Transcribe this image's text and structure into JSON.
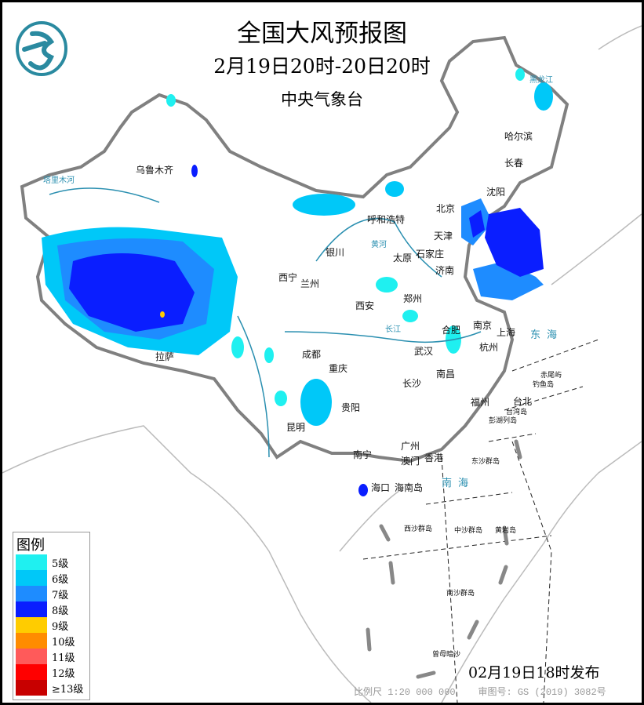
{
  "header": {
    "title": "全国大风预报图",
    "period": "2月19日20时-20日20时",
    "agency": "中央气象台",
    "logo": "cma-dragon-logo"
  },
  "colors": {
    "border": "#808080",
    "water": "#2a8fb0",
    "logo": "#2a8aa0"
  },
  "cities": [
    {
      "name": "乌鲁木齐"
    },
    {
      "name": "哈尔滨"
    },
    {
      "name": "长春"
    },
    {
      "name": "沈阳"
    },
    {
      "name": "北京"
    },
    {
      "name": "天津"
    },
    {
      "name": "呼和浩特"
    },
    {
      "name": "银川"
    },
    {
      "name": "太原"
    },
    {
      "name": "石家庄"
    },
    {
      "name": "济南"
    },
    {
      "name": "西宁"
    },
    {
      "name": "兰州"
    },
    {
      "name": "西安"
    },
    {
      "name": "郑州"
    },
    {
      "name": "合肥"
    },
    {
      "name": "南京"
    },
    {
      "name": "上海"
    },
    {
      "name": "杭州"
    },
    {
      "name": "武汉"
    },
    {
      "name": "成都"
    },
    {
      "name": "重庆"
    },
    {
      "name": "拉萨"
    },
    {
      "name": "长沙"
    },
    {
      "name": "南昌"
    },
    {
      "name": "福州"
    },
    {
      "name": "台北"
    },
    {
      "name": "贵阳"
    },
    {
      "name": "昆明"
    },
    {
      "name": "南宁"
    },
    {
      "name": "广州"
    },
    {
      "name": "澳门"
    },
    {
      "name": "香港"
    },
    {
      "name": "海口"
    },
    {
      "name": "海南岛"
    }
  ],
  "islands": [
    {
      "name": "台湾岛"
    },
    {
      "name": "赤尾屿"
    },
    {
      "name": "钓鱼岛"
    },
    {
      "name": "彭湖列岛"
    },
    {
      "name": "东沙群岛"
    },
    {
      "name": "西沙群岛"
    },
    {
      "name": "中沙群岛"
    },
    {
      "name": "黄岩岛"
    },
    {
      "name": "南沙群岛"
    },
    {
      "name": "曾母暗沙"
    }
  ],
  "seas": [
    {
      "name": "东海"
    },
    {
      "name": "南海"
    }
  ],
  "rivers": [
    {
      "name": "塔里木河"
    },
    {
      "name": "长江"
    },
    {
      "name": "黄河"
    },
    {
      "name": "黑龙江"
    }
  ],
  "legend": {
    "title": "图例",
    "items": [
      {
        "label": "5级",
        "color": "#1ff0f0"
      },
      {
        "label": "6级",
        "color": "#00c8f8"
      },
      {
        "label": "7级",
        "color": "#1e8cff"
      },
      {
        "label": "8级",
        "color": "#0a1eff"
      },
      {
        "label": "9级",
        "color": "#ffcc00"
      },
      {
        "label": "10级",
        "color": "#ff8c00"
      },
      {
        "label": "11级",
        "color": "#ff5a5a"
      },
      {
        "label": "12级",
        "color": "#ff0000"
      },
      {
        "label": "≥13级",
        "color": "#c80000"
      }
    ]
  },
  "footer": {
    "issued": "02月19日18时发布",
    "scale": "比例尺 1:20 000 000",
    "approval": "审图号: GS (2019) 3082号"
  }
}
